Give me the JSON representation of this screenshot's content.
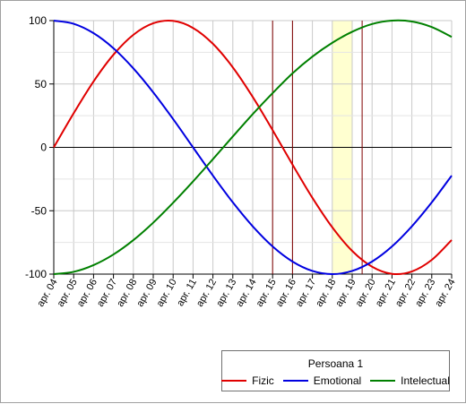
{
  "chart_data": {
    "type": "line",
    "x": [
      "apr. 04",
      "apr. 05",
      "apr. 06",
      "apr. 07",
      "apr. 08",
      "apr. 09",
      "apr. 10",
      "apr. 11",
      "apr. 12",
      "apr. 13",
      "apr. 14",
      "apr. 15",
      "apr. 16",
      "apr. 17",
      "apr. 18",
      "apr. 19",
      "apr. 20",
      "apr. 21",
      "apr. 22",
      "apr. 23",
      "apr. 24"
    ],
    "ylim": [
      -100,
      100
    ],
    "yticks": [
      100,
      50,
      0,
      -50,
      -100
    ],
    "grid": true,
    "legend": {
      "title": "Persoana 1",
      "placement": "bottom-right"
    },
    "series": [
      {
        "name": "Fizic",
        "color": "#e00000",
        "values": [
          0,
          26.9,
          52,
          73.1,
          88.8,
          97.9,
          99.8,
          94.2,
          81.7,
          63.1,
          39.8,
          13.6,
          -13.6,
          -39.8,
          -63.1,
          -81.7,
          -94.2,
          -99.8,
          -97.9,
          -88.8,
          -73.1
        ]
      },
      {
        "name": "Emotional",
        "color": "#0000e0",
        "values": [
          100,
          97.5,
          90.1,
          78.2,
          62.3,
          43.4,
          22.3,
          0,
          -22.3,
          -43.4,
          -62.3,
          -78.2,
          -90.1,
          -97.5,
          -100,
          -97.5,
          -90.1,
          -78.2,
          -62.3,
          -43.4,
          -22.3
        ]
      },
      {
        "name": "Intelectual",
        "color": "#008000",
        "values": [
          -100,
          -98.2,
          -92.9,
          -84.5,
          -73.2,
          -59.4,
          -43.7,
          -26.9,
          -9.3,
          8.6,
          26.2,
          42.8,
          58.4,
          71.6,
          82.5,
          91.2,
          97.3,
          100,
          99.3,
          94.9,
          87.1
        ]
      }
    ],
    "markers": {
      "vertical_lines_x": [
        11,
        12,
        15.5
      ],
      "vertical_line_color": "#800000",
      "highlight_range_x": [
        14,
        15
      ],
      "highlight_color": "#ffffd0"
    }
  }
}
